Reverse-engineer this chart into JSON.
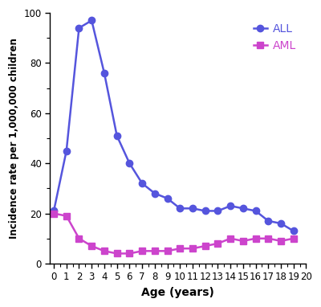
{
  "ages": [
    0,
    1,
    2,
    3,
    4,
    5,
    6,
    7,
    8,
    9,
    10,
    11,
    12,
    13,
    14,
    15,
    16,
    17,
    18,
    19
  ],
  "ALL": [
    21,
    45,
    94,
    97,
    76,
    51,
    40,
    32,
    28,
    26,
    22,
    22,
    21,
    21,
    23,
    22,
    21,
    17,
    16,
    13
  ],
  "AML": [
    20,
    19,
    10,
    7,
    5,
    4,
    4,
    5,
    5,
    5,
    6,
    6,
    7,
    8,
    10,
    9,
    10,
    10,
    9,
    10
  ],
  "ALL_color": "#5555dd",
  "AML_color": "#cc44cc",
  "xlabel": "Age (years)",
  "ylabel": "Incidence rate per 1,000,000 children",
  "ylim": [
    0,
    100
  ],
  "xlim": [
    -0.3,
    20
  ],
  "xticks": [
    0,
    1,
    2,
    3,
    4,
    5,
    6,
    7,
    8,
    9,
    10,
    11,
    12,
    13,
    14,
    15,
    16,
    17,
    18,
    19,
    20
  ],
  "yticks": [
    0,
    20,
    40,
    60,
    80,
    100
  ],
  "legend_labels": [
    "ALL",
    "AML"
  ],
  "ALL_marker": "o",
  "AML_marker": "s",
  "figsize": [
    4.0,
    3.82
  ],
  "dpi": 100
}
